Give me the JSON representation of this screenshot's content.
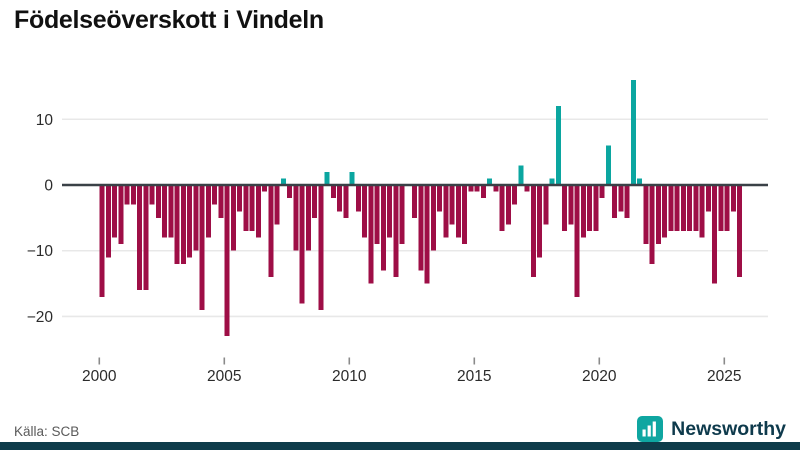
{
  "title": "Födelseöverskott i Vindeln",
  "source": "Källa: SCB",
  "logo": {
    "text": "Newsworthy",
    "icon": "bar-chart-icon"
  },
  "colors": {
    "negative_bar": "#9E0E46",
    "positive_bar": "#0BA6A0",
    "zero_line": "#3A4147",
    "gridline": "#E8E8E8",
    "tick_text": "#2B2B2B",
    "tick_mark": "#8A8A8A",
    "title_text": "#111111",
    "source_text": "#5A5A5A",
    "logo_text": "#0E3A4C",
    "footer_strip": "#0E3C4A",
    "logo_icon_bg": "#0FA6A1"
  },
  "chart_data": {
    "type": "bar",
    "title": "Födelseöverskott i Vindeln",
    "xlabel": "",
    "ylabel": "",
    "frequency": "quarterly",
    "start_period": "2000Q1",
    "end_period": "2025Q3",
    "ylim": [
      -25,
      17
    ],
    "grid": true,
    "yticks": [
      10,
      0,
      -10,
      -20
    ],
    "ytick_labels": [
      "10",
      "0",
      "−10",
      "−20"
    ],
    "xticks": [
      2000,
      2005,
      2010,
      2015,
      2020,
      2025
    ],
    "xtick_labels": [
      "2000",
      "2005",
      "2010",
      "2015",
      "2020",
      "2025"
    ],
    "values": [
      -17,
      -11,
      -8,
      -9,
      -3,
      -3,
      -16,
      -16,
      -3,
      -5,
      -8,
      -8,
      -12,
      -12,
      -11,
      -10,
      -19,
      -8,
      -3,
      -5,
      -23,
      -10,
      -4,
      -7,
      -7,
      -8,
      -1,
      -14,
      -6,
      1,
      -2,
      -10,
      -18,
      -10,
      -5,
      -19,
      2,
      -2,
      -4,
      -5,
      2,
      -4,
      -8,
      -15,
      -9,
      -13,
      -8,
      -14,
      -9,
      0,
      -5,
      -13,
      -15,
      -10,
      -4,
      -8,
      -6,
      -8,
      -9,
      -1,
      -1,
      -2,
      1,
      -1,
      -7,
      -6,
      -3,
      3,
      -1,
      -14,
      -11,
      -6,
      1,
      12,
      -7,
      -6,
      -17,
      -8,
      -7,
      -7,
      -2,
      6,
      -5,
      -4,
      -5,
      16,
      1,
      -9,
      -12,
      -9,
      -8,
      -7,
      -7,
      -7,
      -7,
      -7,
      -8,
      -4,
      -15,
      -7,
      -7,
      -4,
      -14
    ]
  }
}
